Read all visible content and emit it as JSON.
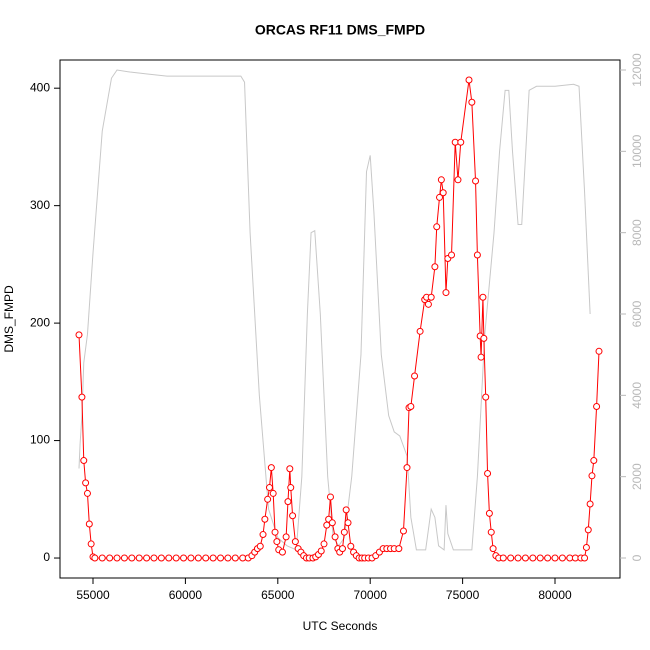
{
  "chart_data": {
    "type": "line",
    "title": "ORCAS RF11 DMS_FMPD",
    "x_label": "UTC Seconds",
    "y_label": "DMS_FMPD",
    "xlim": [
      53214,
      83517
    ],
    "xticks": [
      55000,
      60000,
      65000,
      70000,
      75000,
      80000
    ],
    "ylim": [
      -17,
      424
    ],
    "yticks": [
      0,
      100,
      200,
      300,
      400
    ],
    "y2lim": [
      -492,
      12246
    ],
    "y2ticks": [
      0,
      2000,
      4000,
      6000,
      8000,
      10000,
      12000
    ],
    "series": [
      {
        "color": "#ff0000",
        "markers": true,
        "x": [
          54242,
          54400,
          54500,
          54600,
          54700,
          54800,
          54900,
          55000,
          55100,
          55500,
          55900,
          56300,
          56700,
          57100,
          57500,
          57900,
          58300,
          58700,
          59100,
          59500,
          59900,
          60300,
          60700,
          61100,
          61500,
          61900,
          62300,
          62700,
          63100,
          63400,
          63600,
          63750,
          63900,
          64050,
          64200,
          64300,
          64450,
          64550,
          64650,
          64750,
          64850,
          64950,
          65050,
          65250,
          65450,
          65550,
          65650,
          65700,
          65800,
          65950,
          66100,
          66250,
          66400,
          66550,
          66700,
          66900,
          67050,
          67200,
          67350,
          67500,
          67650,
          67750,
          67850,
          67950,
          68100,
          68250,
          68350,
          68500,
          68600,
          68700,
          68800,
          68950,
          69100,
          69250,
          69400,
          69550,
          69700,
          69900,
          70100,
          70300,
          70500,
          70700,
          70900,
          71100,
          71300,
          71550,
          71800,
          71991,
          72100,
          72200,
          72400,
          72700,
          72950,
          73050,
          73150,
          73300,
          73500,
          73600,
          73750,
          73850,
          73950,
          74100,
          74200,
          74400,
          74600,
          74750,
          74900,
          75346,
          75500,
          75700,
          75800,
          75950,
          76000,
          76100,
          76150,
          76250,
          76350,
          76450,
          76550,
          76650,
          76800,
          76950,
          77200,
          77600,
          78000,
          78400,
          78800,
          79200,
          79600,
          80000,
          80400,
          80800,
          81100,
          81400,
          81600,
          81700,
          81800,
          81900,
          82000,
          82100,
          82250,
          82381
        ],
        "values": [
          190,
          137,
          83,
          64,
          55,
          29,
          12,
          1,
          0,
          0,
          0,
          0,
          0,
          0,
          0,
          0,
          0,
          0,
          0,
          0,
          0,
          0,
          0,
          0,
          0,
          0,
          0,
          0,
          0,
          0,
          2,
          5,
          8,
          10,
          20,
          33,
          50,
          60,
          77,
          55,
          22,
          14,
          7,
          5,
          18,
          48,
          76,
          60,
          36,
          14,
          8,
          5,
          2,
          0,
          0,
          0,
          1,
          3,
          6,
          12,
          28,
          33,
          52,
          30,
          18,
          8,
          5,
          8,
          22,
          41,
          30,
          10,
          5,
          2,
          0,
          0,
          0,
          0,
          0,
          2,
          5,
          8,
          8,
          8,
          8,
          8,
          23,
          77,
          128,
          129,
          155,
          193,
          220,
          222,
          216,
          222,
          248,
          282,
          307,
          322,
          311,
          226,
          255,
          258,
          354,
          322,
          354,
          407,
          388,
          321,
          258,
          189,
          171,
          222,
          187,
          137,
          72,
          38,
          22,
          8,
          2,
          0,
          0,
          0,
          0,
          0,
          0,
          0,
          0,
          0,
          0,
          0,
          0,
          0,
          0,
          9,
          24,
          46,
          70,
          83,
          129,
          176
        ]
      },
      {
        "color": "#c8c8c8",
        "axis": "y2",
        "markers": false,
        "x": [
          54242,
          54300,
          54400,
          54500,
          54700,
          55000,
          55500,
          56000,
          56300,
          57000,
          58000,
          59000,
          60000,
          61000,
          62000,
          63000,
          63200,
          63500,
          64000,
          64500,
          65000,
          65500,
          66000,
          66300,
          66600,
          66800,
          67000,
          67300,
          67700,
          68000,
          68300,
          68600,
          69000,
          69500,
          69800,
          70000,
          70200,
          70600,
          71000,
          71300,
          71600,
          72000,
          72200,
          72500,
          73000,
          73300,
          73500,
          73700,
          74000,
          74100,
          74200,
          74500,
          75000,
          75500,
          75800,
          76200,
          76700,
          77000,
          77300,
          77500,
          77700,
          78000,
          78200,
          78600,
          79000,
          80000,
          81000,
          81300,
          81600,
          81900
        ],
        "values": [
          2200,
          2800,
          3500,
          4800,
          5500,
          7500,
          10500,
          11800,
          12000,
          11950,
          11900,
          11850,
          11850,
          11850,
          11850,
          11850,
          11700,
          8000,
          4000,
          1200,
          500,
          300,
          200,
          2000,
          6000,
          8000,
          8050,
          6000,
          2000,
          500,
          300,
          500,
          2000,
          5000,
          9500,
          9900,
          8500,
          5000,
          3500,
          3100,
          3000,
          2500,
          1000,
          200,
          200,
          1200,
          1000,
          300,
          200,
          1300,
          600,
          200,
          200,
          200,
          2000,
          5500,
          8000,
          10000,
          11500,
          11500,
          10000,
          8200,
          8200,
          11500,
          11600,
          11600,
          11650,
          11600,
          9000,
          6000
        ]
      }
    ]
  }
}
